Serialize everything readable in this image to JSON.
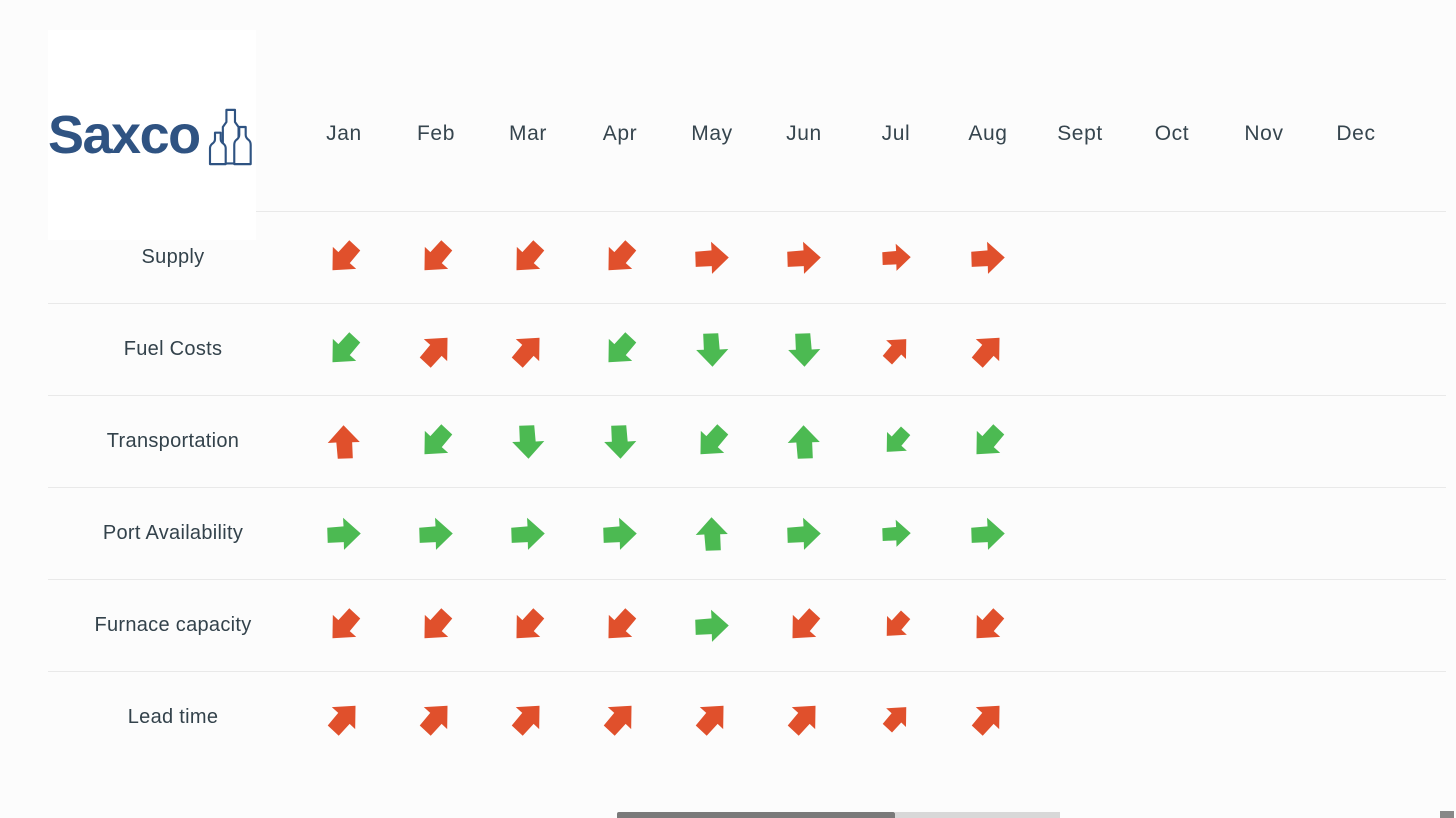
{
  "colors": {
    "red": "#E0502C",
    "green": "#4CBA52",
    "logo_blue": "#2F5382",
    "text": "#36454E",
    "divider": "#E9E9E9",
    "background": "#FCFCFC"
  },
  "logo": {
    "text": "Saxco",
    "icon": "bottles-icon"
  },
  "chart_data": {
    "type": "table",
    "title": "",
    "months": [
      "Jan",
      "Feb",
      "Mar",
      "Apr",
      "May",
      "Jun",
      "Jul",
      "Aug",
      "Sept",
      "Oct",
      "Nov",
      "Dec"
    ],
    "direction_codes": {
      "e": "right",
      "n": "up",
      "s": "down",
      "ne": "up-right",
      "sw": "down-left"
    },
    "rows": [
      {
        "label": "Supply",
        "cells": [
          {
            "dir": "sw",
            "color": "red"
          },
          {
            "dir": "sw",
            "color": "red"
          },
          {
            "dir": "sw",
            "color": "red"
          },
          {
            "dir": "sw",
            "color": "red"
          },
          {
            "dir": "e",
            "color": "red"
          },
          {
            "dir": "e",
            "color": "red"
          },
          {
            "dir": "e",
            "color": "red"
          },
          {
            "dir": "e",
            "color": "red"
          },
          null,
          null,
          null,
          null
        ]
      },
      {
        "label": "Fuel Costs",
        "cells": [
          {
            "dir": "sw",
            "color": "green"
          },
          {
            "dir": "ne",
            "color": "red"
          },
          {
            "dir": "ne",
            "color": "red"
          },
          {
            "dir": "sw",
            "color": "green"
          },
          {
            "dir": "s",
            "color": "green"
          },
          {
            "dir": "s",
            "color": "green"
          },
          {
            "dir": "ne",
            "color": "red"
          },
          {
            "dir": "ne",
            "color": "red"
          },
          null,
          null,
          null,
          null
        ]
      },
      {
        "label": "Transportation",
        "cells": [
          {
            "dir": "n",
            "color": "red"
          },
          {
            "dir": "sw",
            "color": "green"
          },
          {
            "dir": "s",
            "color": "green"
          },
          {
            "dir": "s",
            "color": "green"
          },
          {
            "dir": "sw",
            "color": "green"
          },
          {
            "dir": "n",
            "color": "green"
          },
          {
            "dir": "sw",
            "color": "green"
          },
          {
            "dir": "sw",
            "color": "green"
          },
          null,
          null,
          null,
          null
        ]
      },
      {
        "label": "Port Availability",
        "cells": [
          {
            "dir": "e",
            "color": "green"
          },
          {
            "dir": "e",
            "color": "green"
          },
          {
            "dir": "e",
            "color": "green"
          },
          {
            "dir": "e",
            "color": "green"
          },
          {
            "dir": "n",
            "color": "green"
          },
          {
            "dir": "e",
            "color": "green"
          },
          {
            "dir": "e",
            "color": "green"
          },
          {
            "dir": "e",
            "color": "green"
          },
          null,
          null,
          null,
          null
        ]
      },
      {
        "label": "Furnace capacity",
        "cells": [
          {
            "dir": "sw",
            "color": "red"
          },
          {
            "dir": "sw",
            "color": "red"
          },
          {
            "dir": "sw",
            "color": "red"
          },
          {
            "dir": "sw",
            "color": "red"
          },
          {
            "dir": "e",
            "color": "green"
          },
          {
            "dir": "sw",
            "color": "red"
          },
          {
            "dir": "sw",
            "color": "red"
          },
          {
            "dir": "sw",
            "color": "red"
          },
          null,
          null,
          null,
          null
        ]
      },
      {
        "label": "Lead time",
        "cells": [
          {
            "dir": "ne",
            "color": "red"
          },
          {
            "dir": "ne",
            "color": "red"
          },
          {
            "dir": "ne",
            "color": "red"
          },
          {
            "dir": "ne",
            "color": "red"
          },
          {
            "dir": "ne",
            "color": "red"
          },
          {
            "dir": "ne",
            "color": "red"
          },
          {
            "dir": "ne",
            "color": "red"
          },
          {
            "dir": "ne",
            "color": "red"
          },
          null,
          null,
          null,
          null
        ]
      }
    ]
  }
}
